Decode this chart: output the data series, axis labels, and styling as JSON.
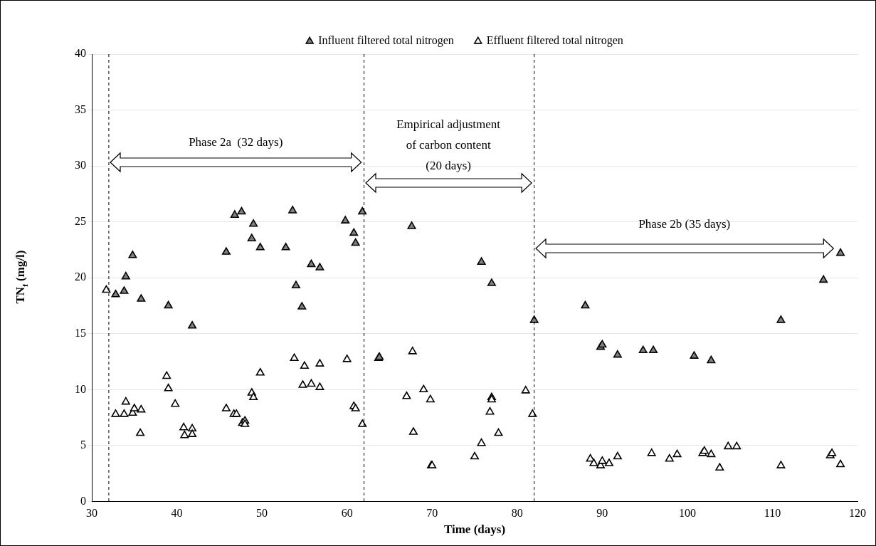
{
  "chart_data": {
    "type": "scatter",
    "xlabel": "Time (days)",
    "ylabel": "TN$_{f}$ (mg/l)",
    "xlim": [
      30,
      120
    ],
    "xticks": [
      30,
      40,
      50,
      60,
      70,
      80,
      90,
      100,
      110,
      120
    ],
    "ylim": [
      0,
      40
    ],
    "yticks": [
      0,
      5,
      10,
      15,
      20,
      25,
      30,
      35,
      40
    ],
    "grid": "y",
    "legend": "top",
    "marker": "triangle",
    "series": [
      {
        "name": "Influent filtered total nitrogen",
        "color": "#808080",
        "x": [
          32.8,
          33.8,
          34,
          34.8,
          35.8,
          39,
          41.8,
          45.8,
          46.8,
          47.6,
          48.8,
          49,
          49.8,
          52.8,
          53.6,
          54,
          54.7,
          55.8,
          56.8,
          59.8,
          60.8,
          61,
          61.8,
          63.8,
          67.6,
          75.8,
          77,
          82,
          88,
          89.8,
          90,
          91.8,
          94.8,
          96,
          100.8,
          102.8,
          111,
          116,
          118
        ],
        "values": [
          18.5,
          18.8,
          20.1,
          22,
          18.1,
          17.5,
          15.7,
          22.3,
          25.6,
          25.9,
          23.5,
          24.8,
          22.7,
          22.7,
          26,
          19.3,
          17.4,
          21.2,
          20.9,
          25.1,
          24,
          23.1,
          25.9,
          12.9,
          24.6,
          21.4,
          19.5,
          16.2,
          17.5,
          13.8,
          14,
          13.1,
          13.5,
          13.5,
          13,
          12.6,
          16.2,
          19.8,
          22.2
        ]
      },
      {
        "name": "Effluent filtered total nitrogen",
        "color": "#ffffff",
        "x": [
          31.7,
          32.8,
          33.8,
          34,
          34.8,
          35,
          35.8,
          35.7,
          38.8,
          39,
          39.8,
          40.8,
          40.9,
          41.8,
          41.8,
          45.8,
          46.7,
          47,
          47.7,
          48,
          48,
          48.8,
          49,
          49.8,
          53.8,
          54.8,
          55,
          55.8,
          56.8,
          56.8,
          60,
          60.8,
          61,
          61.8,
          63.7,
          67,
          67.7,
          67.8,
          69,
          69.8,
          69.9,
          70,
          75,
          75.8,
          76.8,
          77,
          77,
          77.8,
          81,
          81.8,
          88.6,
          89,
          89.8,
          90,
          90.8,
          91.8,
          95.8,
          97.9,
          98.8,
          101.8,
          102,
          102.8,
          103.8,
          104.8,
          105.8,
          111,
          116.8,
          117,
          118
        ],
        "values": [
          18.9,
          7.8,
          7.8,
          8.9,
          7.9,
          8.3,
          8.2,
          6.1,
          11.2,
          10.1,
          8.7,
          6.6,
          5.9,
          6.5,
          6,
          8.3,
          7.8,
          7.8,
          7,
          7.2,
          6.9,
          9.7,
          9.3,
          11.5,
          12.8,
          10.4,
          12.1,
          10.5,
          10.2,
          12.3,
          12.7,
          8.5,
          8.3,
          6.9,
          12.8,
          9.4,
          13.4,
          6.2,
          10,
          9.1,
          3.2,
          3.2,
          4,
          5.2,
          8,
          9.3,
          9.1,
          6.1,
          9.9,
          7.8,
          3.8,
          3.4,
          3.2,
          3.6,
          3.4,
          4,
          4.3,
          3.8,
          4.2,
          4.3,
          4.5,
          4.2,
          3,
          4.9,
          4.9,
          3.2,
          4.1,
          4.3,
          3.3
        ]
      }
    ],
    "ref_lines": [
      {
        "axis": "x",
        "value": 32,
        "line_style": "dashed",
        "color": "#000000"
      },
      {
        "axis": "x",
        "value": 62,
        "line_style": "dashed",
        "color": "#000000"
      },
      {
        "axis": "x",
        "value": 82,
        "line_style": "dashed",
        "color": "#000000"
      }
    ],
    "annotations": [
      "Phase 2a  (32 days)",
      "Empirical adjustment\nof carbon content\n(20 days)",
      "Phase 2b (35 days)"
    ]
  }
}
